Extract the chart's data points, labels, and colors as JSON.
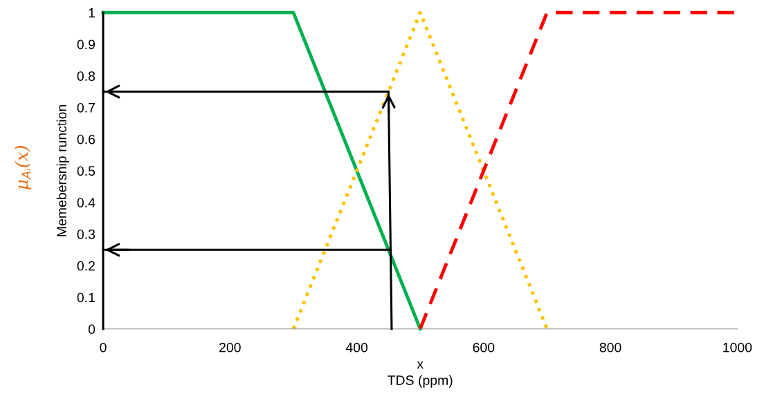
{
  "chart_data": {
    "type": "line",
    "xlabel": "x\nTDS (ppm)",
    "ylabel": "Memebersnip runction",
    "annotations": [
      "μ$_{Aᵢ}$(x)"
    ],
    "xlim": [
      0,
      1000
    ],
    "xticks": [
      0,
      200,
      400,
      600,
      800,
      1000
    ],
    "ylim": [
      0,
      1
    ],
    "yticks": [
      0,
      0.1,
      0.2,
      0.3,
      0.4,
      0.5,
      0.6,
      0.7,
      0.8,
      0.9,
      1
    ],
    "grid": false,
    "legend": false,
    "marker": "none",
    "series": [
      {
        "color": "#00b050",
        "line_style": "solid",
        "x": [
          0,
          300,
          500
        ],
        "values": [
          1,
          1,
          0
        ]
      },
      {
        "color": "#ffc000",
        "line_style": "dotted",
        "x": [
          300,
          500,
          700
        ],
        "values": [
          0,
          1,
          0
        ]
      },
      {
        "color": "#ff0000",
        "line_style": "dashed",
        "x": [
          500,
          700,
          1000
        ],
        "values": [
          0,
          1,
          1
        ]
      },
      {
        "color": "#000000",
        "line_style": "solid",
        "x": [
          0,
          0
        ],
        "values": [
          0,
          1
        ]
      },
      {
        "color": "#000000",
        "line_style": "solid",
        "x": [
          455,
          450
        ],
        "values": [
          0,
          0.75
        ]
      },
      {
        "color": "#000000",
        "line_style": "solid",
        "x": [
          450,
          0
        ],
        "values": [
          0.75,
          0.75
        ]
      },
      {
        "color": "#000000",
        "line_style": "solid",
        "x": [
          450,
          0
        ],
        "values": [
          0.25,
          0.25
        ]
      }
    ]
  }
}
